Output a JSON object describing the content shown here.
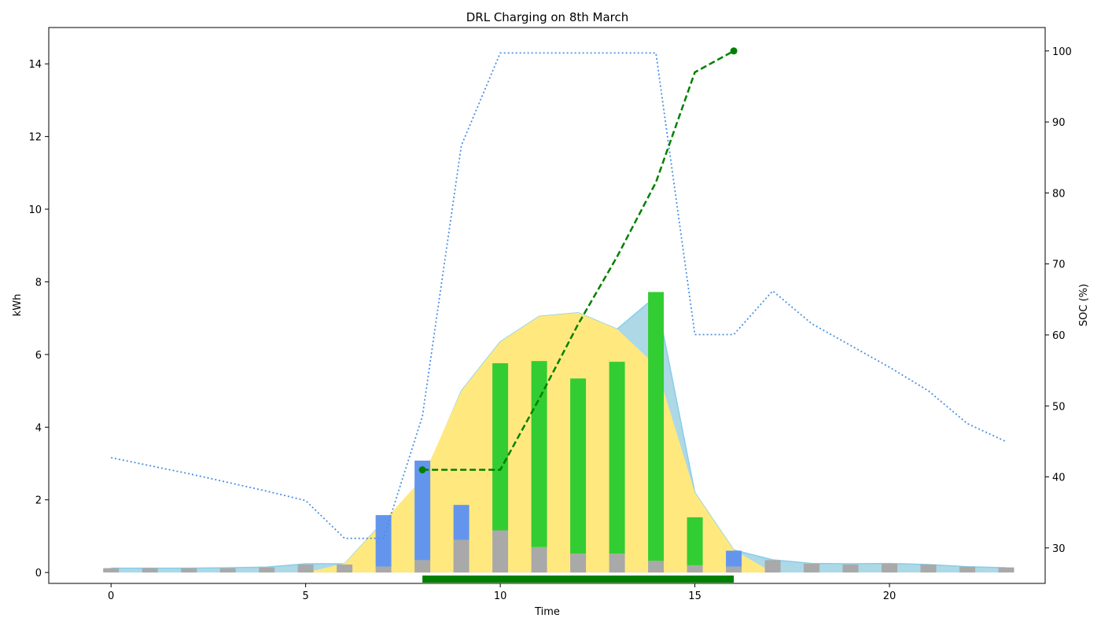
{
  "chart_data": {
    "type": "bar",
    "title": "DRL Charging on 8th March",
    "xlabel": "Time",
    "ylabel": "kWh",
    "y2label": "SOC (%)",
    "xlim": [
      -1.6,
      24.0
    ],
    "ylim": [
      -0.3,
      15.0
    ],
    "y2lim": [
      25.0,
      103.3
    ],
    "xticks": [
      0,
      5,
      10,
      15,
      20
    ],
    "yticks": [
      0,
      2,
      4,
      6,
      8,
      10,
      12,
      14
    ],
    "y2ticks": [
      30,
      40,
      50,
      60,
      70,
      80,
      90,
      100
    ],
    "grid": false,
    "hours": [
      0,
      1,
      2,
      3,
      4,
      5,
      6,
      7,
      8,
      9,
      10,
      11,
      12,
      13,
      14,
      15,
      16,
      17,
      18,
      19,
      20,
      21,
      22,
      23
    ],
    "series": [
      {
        "kind": "area",
        "values": [
          0.12,
          0.12,
          0.12,
          0.13,
          0.15,
          0.24,
          0.24,
          1.4,
          2.5,
          5.0,
          6.35,
          7.05,
          7.15,
          6.7,
          7.6,
          2.2,
          0.62,
          0.35,
          0.25,
          0.24,
          0.25,
          0.22,
          0.16,
          0.13
        ],
        "color": "#ADD8E6"
      },
      {
        "kind": "area",
        "values": [
          0,
          0,
          0,
          0,
          0,
          0,
          0.25,
          1.4,
          2.6,
          5.0,
          6.35,
          7.05,
          7.15,
          6.7,
          5.7,
          2.2,
          0.62,
          0,
          0,
          0,
          0,
          0,
          0,
          0
        ],
        "color": "#FFE97F"
      },
      {
        "kind": "bar",
        "values": [
          0.12,
          0.12,
          0.12,
          0.12,
          0.14,
          0.22,
          0.22,
          0.16,
          0.34,
          0.9,
          1.16,
          0.7,
          0.52,
          0.52,
          0.32,
          0.2,
          0.16,
          0.34,
          0.24,
          0.22,
          0.24,
          0.22,
          0.16,
          0.14
        ],
        "color": "#A9A9A9"
      },
      {
        "kind": "bar",
        "values": [
          0,
          0,
          0,
          0,
          0,
          0,
          0,
          1.42,
          2.74,
          0.96,
          0,
          0,
          0,
          0,
          0,
          0,
          0.44,
          0,
          0,
          0,
          0,
          0,
          0,
          0
        ],
        "color": "#6495ED"
      },
      {
        "kind": "bar",
        "values": [
          0,
          0,
          0,
          0,
          0,
          0,
          0,
          0,
          0,
          0,
          4.6,
          5.12,
          4.82,
          5.28,
          7.4,
          1.32,
          0,
          0,
          0,
          0,
          0,
          0,
          0,
          0
        ],
        "color": "#32CD32"
      },
      {
        "kind": "soc-line",
        "x": [
          8,
          10,
          11,
          12,
          13,
          14,
          15,
          16
        ],
        "values": [
          41.0,
          41.0,
          51.0,
          61.5,
          71.0,
          81.5,
          97.0,
          100.0
        ],
        "color": "#008000"
      },
      {
        "kind": "price-line",
        "values": [
          3.16,
          2.94,
          2.72,
          2.48,
          2.24,
          1.98,
          0.94,
          0.94,
          4.3,
          11.75,
          14.3,
          14.3,
          14.3,
          14.3,
          14.3,
          6.55,
          6.55,
          7.75,
          6.85,
          6.25,
          5.65,
          5.0,
          4.1,
          3.6
        ],
        "color": "#4A90E2"
      }
    ],
    "charging_window": {
      "start": 8,
      "end": 16,
      "color": "#008000"
    }
  }
}
